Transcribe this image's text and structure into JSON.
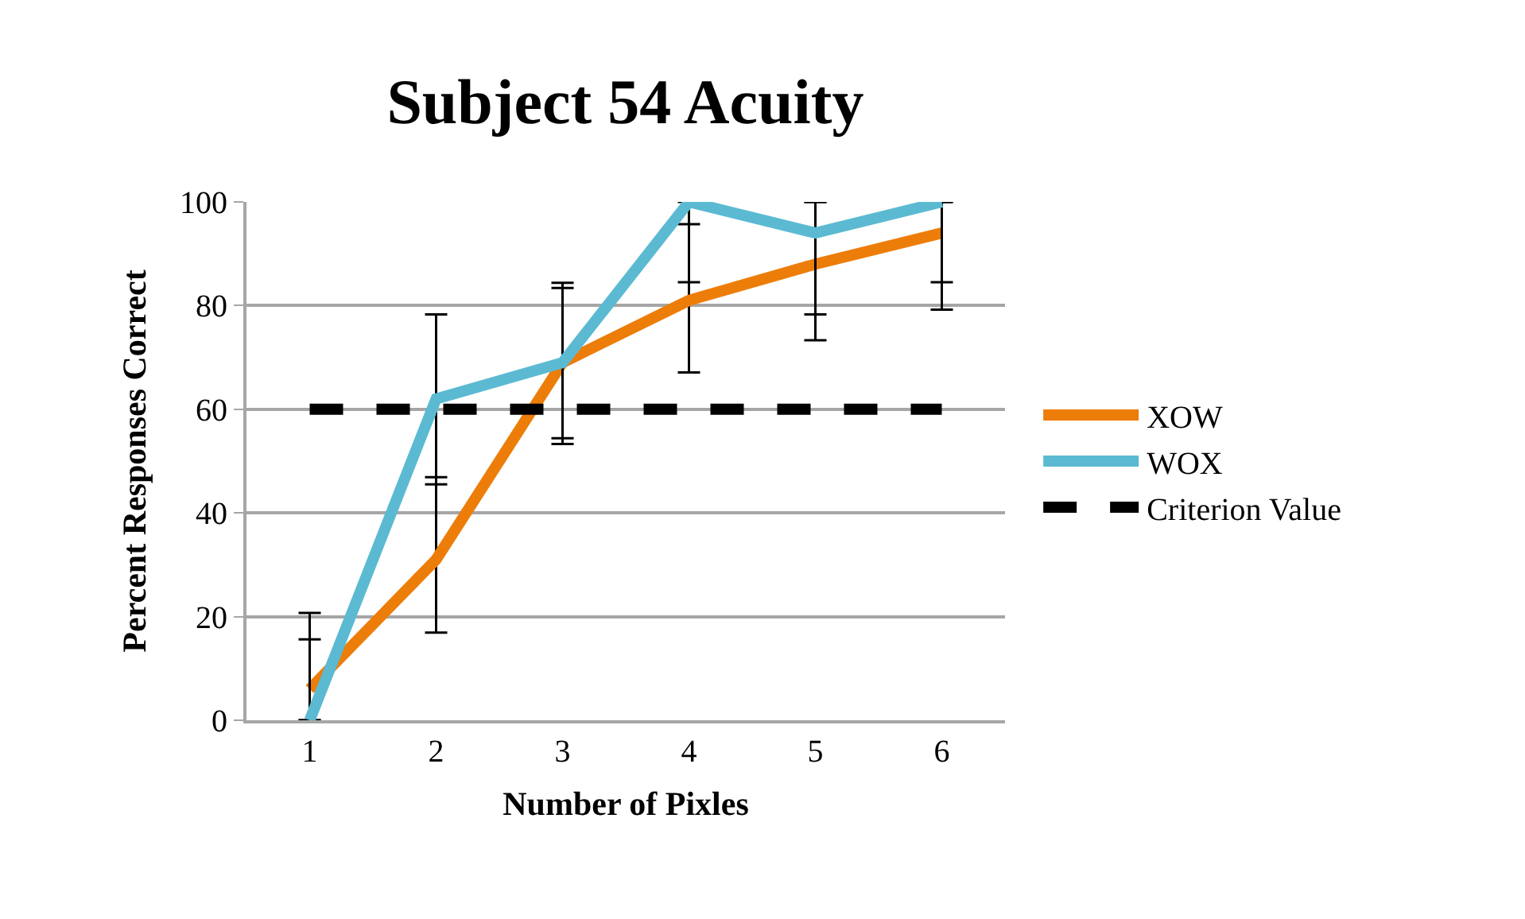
{
  "chart_data": {
    "type": "line",
    "title": "Subject 54 Acuity",
    "xlabel": "Number of Pixles",
    "ylabel": "Percent Responses Correct",
    "categories": [
      "1",
      "2",
      "3",
      "4",
      "5",
      "6"
    ],
    "series": [
      {
        "name": "XOW",
        "color": "#ed7d09",
        "values": [
          6,
          31,
          69,
          81,
          88,
          94
        ],
        "errors": [
          [
            0,
            20.7
          ],
          [
            16.9,
            46.9
          ],
          [
            53.3,
            83.4
          ],
          [
            67.1,
            95.7
          ],
          [
            73.3,
            100
          ],
          [
            79.2,
            100
          ]
        ]
      },
      {
        "name": "WOX",
        "color": "#5bbad2",
        "values": [
          0,
          62,
          69,
          100,
          94,
          100
        ],
        "errors": [
          [
            0,
            15.6
          ],
          [
            45.5,
            78.3
          ],
          [
            54.4,
            84.4
          ],
          [
            84.5,
            100
          ],
          [
            78.3,
            100
          ],
          [
            84.5,
            100
          ]
        ]
      },
      {
        "name": "Criterion Value",
        "color": "#000000",
        "line_style": "dashed",
        "values": [
          60,
          60,
          60,
          60,
          60,
          60
        ]
      }
    ],
    "ylim": [
      0,
      100
    ],
    "yticks": [
      0,
      20,
      40,
      60,
      80,
      100
    ],
    "grid": "y",
    "legend": "right",
    "marker": "none"
  }
}
